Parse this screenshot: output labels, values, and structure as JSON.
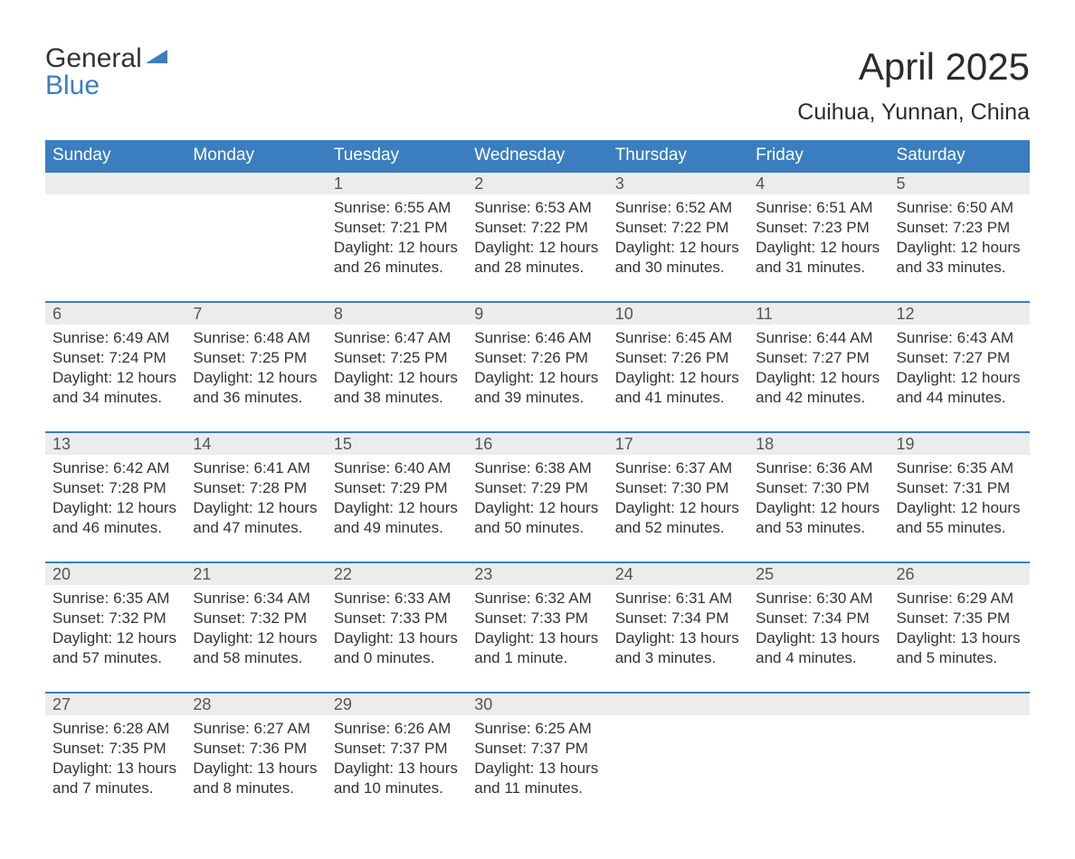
{
  "logo": {
    "top": "General",
    "bottom": "Blue",
    "flag_color": "#3a7ebf",
    "top_color": "#333333"
  },
  "title": "April 2025",
  "subtitle": "Cuihua, Yunnan, China",
  "colors": {
    "header_bg": "#3a7ebf",
    "header_text": "#ffffff",
    "daynum_bg": "#ececec",
    "daynum_text": "#555555",
    "body_text": "#333333",
    "row_border": "#3a7ebf",
    "page_bg": "#ffffff"
  },
  "typography": {
    "title_fontsize": 42,
    "subtitle_fontsize": 25,
    "header_fontsize": 19,
    "daynum_fontsize": 18,
    "body_fontsize": 17,
    "logo_fontsize": 30,
    "font_family": "Arial"
  },
  "calendar": {
    "type": "table",
    "columns": [
      "Sunday",
      "Monday",
      "Tuesday",
      "Wednesday",
      "Thursday",
      "Friday",
      "Saturday"
    ],
    "weeks": [
      [
        null,
        null,
        {
          "day": "1",
          "sunrise": "Sunrise: 6:55 AM",
          "sunset": "Sunset: 7:21 PM",
          "daylight1": "Daylight: 12 hours",
          "daylight2": "and 26 minutes."
        },
        {
          "day": "2",
          "sunrise": "Sunrise: 6:53 AM",
          "sunset": "Sunset: 7:22 PM",
          "daylight1": "Daylight: 12 hours",
          "daylight2": "and 28 minutes."
        },
        {
          "day": "3",
          "sunrise": "Sunrise: 6:52 AM",
          "sunset": "Sunset: 7:22 PM",
          "daylight1": "Daylight: 12 hours",
          "daylight2": "and 30 minutes."
        },
        {
          "day": "4",
          "sunrise": "Sunrise: 6:51 AM",
          "sunset": "Sunset: 7:23 PM",
          "daylight1": "Daylight: 12 hours",
          "daylight2": "and 31 minutes."
        },
        {
          "day": "5",
          "sunrise": "Sunrise: 6:50 AM",
          "sunset": "Sunset: 7:23 PM",
          "daylight1": "Daylight: 12 hours",
          "daylight2": "and 33 minutes."
        }
      ],
      [
        {
          "day": "6",
          "sunrise": "Sunrise: 6:49 AM",
          "sunset": "Sunset: 7:24 PM",
          "daylight1": "Daylight: 12 hours",
          "daylight2": "and 34 minutes."
        },
        {
          "day": "7",
          "sunrise": "Sunrise: 6:48 AM",
          "sunset": "Sunset: 7:25 PM",
          "daylight1": "Daylight: 12 hours",
          "daylight2": "and 36 minutes."
        },
        {
          "day": "8",
          "sunrise": "Sunrise: 6:47 AM",
          "sunset": "Sunset: 7:25 PM",
          "daylight1": "Daylight: 12 hours",
          "daylight2": "and 38 minutes."
        },
        {
          "day": "9",
          "sunrise": "Sunrise: 6:46 AM",
          "sunset": "Sunset: 7:26 PM",
          "daylight1": "Daylight: 12 hours",
          "daylight2": "and 39 minutes."
        },
        {
          "day": "10",
          "sunrise": "Sunrise: 6:45 AM",
          "sunset": "Sunset: 7:26 PM",
          "daylight1": "Daylight: 12 hours",
          "daylight2": "and 41 minutes."
        },
        {
          "day": "11",
          "sunrise": "Sunrise: 6:44 AM",
          "sunset": "Sunset: 7:27 PM",
          "daylight1": "Daylight: 12 hours",
          "daylight2": "and 42 minutes."
        },
        {
          "day": "12",
          "sunrise": "Sunrise: 6:43 AM",
          "sunset": "Sunset: 7:27 PM",
          "daylight1": "Daylight: 12 hours",
          "daylight2": "and 44 minutes."
        }
      ],
      [
        {
          "day": "13",
          "sunrise": "Sunrise: 6:42 AM",
          "sunset": "Sunset: 7:28 PM",
          "daylight1": "Daylight: 12 hours",
          "daylight2": "and 46 minutes."
        },
        {
          "day": "14",
          "sunrise": "Sunrise: 6:41 AM",
          "sunset": "Sunset: 7:28 PM",
          "daylight1": "Daylight: 12 hours",
          "daylight2": "and 47 minutes."
        },
        {
          "day": "15",
          "sunrise": "Sunrise: 6:40 AM",
          "sunset": "Sunset: 7:29 PM",
          "daylight1": "Daylight: 12 hours",
          "daylight2": "and 49 minutes."
        },
        {
          "day": "16",
          "sunrise": "Sunrise: 6:38 AM",
          "sunset": "Sunset: 7:29 PM",
          "daylight1": "Daylight: 12 hours",
          "daylight2": "and 50 minutes."
        },
        {
          "day": "17",
          "sunrise": "Sunrise: 6:37 AM",
          "sunset": "Sunset: 7:30 PM",
          "daylight1": "Daylight: 12 hours",
          "daylight2": "and 52 minutes."
        },
        {
          "day": "18",
          "sunrise": "Sunrise: 6:36 AM",
          "sunset": "Sunset: 7:30 PM",
          "daylight1": "Daylight: 12 hours",
          "daylight2": "and 53 minutes."
        },
        {
          "day": "19",
          "sunrise": "Sunrise: 6:35 AM",
          "sunset": "Sunset: 7:31 PM",
          "daylight1": "Daylight: 12 hours",
          "daylight2": "and 55 minutes."
        }
      ],
      [
        {
          "day": "20",
          "sunrise": "Sunrise: 6:35 AM",
          "sunset": "Sunset: 7:32 PM",
          "daylight1": "Daylight: 12 hours",
          "daylight2": "and 57 minutes."
        },
        {
          "day": "21",
          "sunrise": "Sunrise: 6:34 AM",
          "sunset": "Sunset: 7:32 PM",
          "daylight1": "Daylight: 12 hours",
          "daylight2": "and 58 minutes."
        },
        {
          "day": "22",
          "sunrise": "Sunrise: 6:33 AM",
          "sunset": "Sunset: 7:33 PM",
          "daylight1": "Daylight: 13 hours",
          "daylight2": "and 0 minutes."
        },
        {
          "day": "23",
          "sunrise": "Sunrise: 6:32 AM",
          "sunset": "Sunset: 7:33 PM",
          "daylight1": "Daylight: 13 hours",
          "daylight2": "and 1 minute."
        },
        {
          "day": "24",
          "sunrise": "Sunrise: 6:31 AM",
          "sunset": "Sunset: 7:34 PM",
          "daylight1": "Daylight: 13 hours",
          "daylight2": "and 3 minutes."
        },
        {
          "day": "25",
          "sunrise": "Sunrise: 6:30 AM",
          "sunset": "Sunset: 7:34 PM",
          "daylight1": "Daylight: 13 hours",
          "daylight2": "and 4 minutes."
        },
        {
          "day": "26",
          "sunrise": "Sunrise: 6:29 AM",
          "sunset": "Sunset: 7:35 PM",
          "daylight1": "Daylight: 13 hours",
          "daylight2": "and 5 minutes."
        }
      ],
      [
        {
          "day": "27",
          "sunrise": "Sunrise: 6:28 AM",
          "sunset": "Sunset: 7:35 PM",
          "daylight1": "Daylight: 13 hours",
          "daylight2": "and 7 minutes."
        },
        {
          "day": "28",
          "sunrise": "Sunrise: 6:27 AM",
          "sunset": "Sunset: 7:36 PM",
          "daylight1": "Daylight: 13 hours",
          "daylight2": "and 8 minutes."
        },
        {
          "day": "29",
          "sunrise": "Sunrise: 6:26 AM",
          "sunset": "Sunset: 7:37 PM",
          "daylight1": "Daylight: 13 hours",
          "daylight2": "and 10 minutes."
        },
        {
          "day": "30",
          "sunrise": "Sunrise: 6:25 AM",
          "sunset": "Sunset: 7:37 PM",
          "daylight1": "Daylight: 13 hours",
          "daylight2": "and 11 minutes."
        },
        null,
        null,
        null
      ]
    ]
  }
}
